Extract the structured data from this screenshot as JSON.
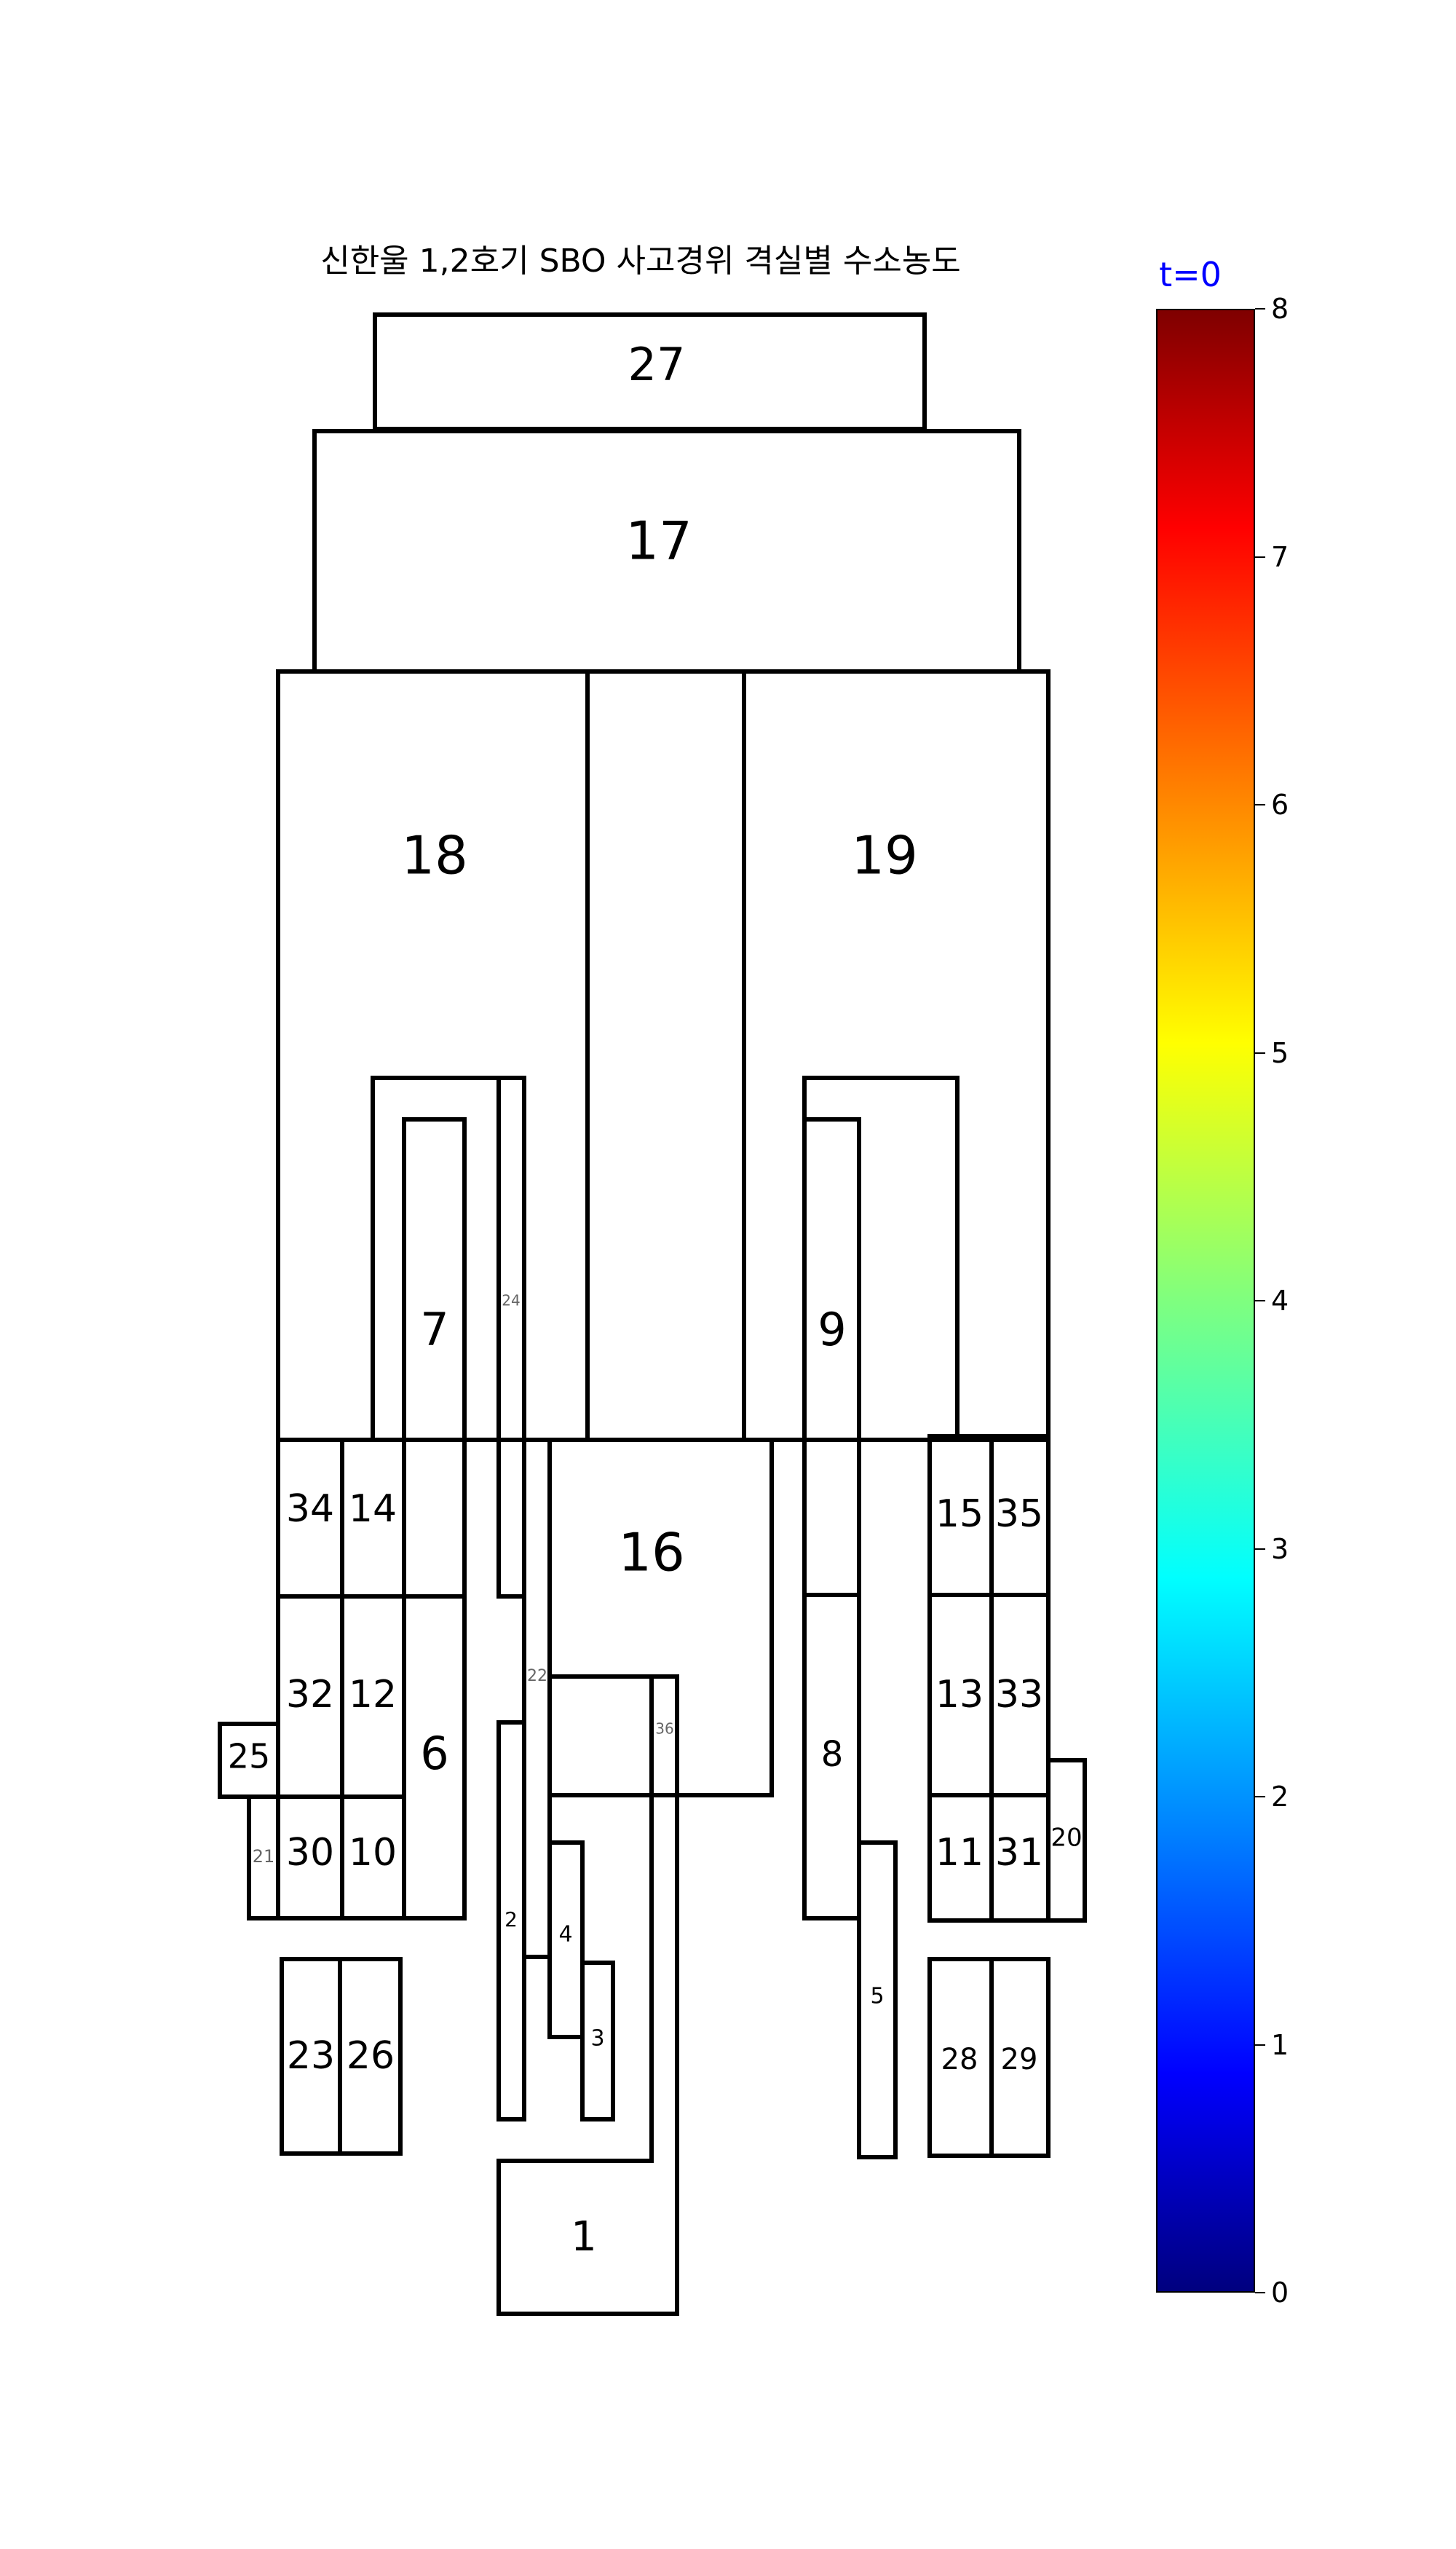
{
  "title": "신한울 1,2호기 SBO 사고경위 격실별 수소농도",
  "time_label": "t=0",
  "colorbar": {
    "min": 0,
    "max": 8,
    "ticks": [
      "0",
      "1",
      "2",
      "3",
      "4",
      "5",
      "6",
      "7",
      "8"
    ],
    "colormap": "jet"
  },
  "rooms": [
    {
      "id": "27",
      "label": "27"
    },
    {
      "id": "17",
      "label": "17"
    },
    {
      "id": "18",
      "label": "18"
    },
    {
      "id": "19",
      "label": "19"
    },
    {
      "id": "7",
      "label": "7"
    },
    {
      "id": "24",
      "label": "24"
    },
    {
      "id": "9",
      "label": "9"
    },
    {
      "id": "34",
      "label": "34"
    },
    {
      "id": "14",
      "label": "14"
    },
    {
      "id": "16",
      "label": "16"
    },
    {
      "id": "15",
      "label": "15"
    },
    {
      "id": "35",
      "label": "35"
    },
    {
      "id": "32",
      "label": "32"
    },
    {
      "id": "12",
      "label": "12"
    },
    {
      "id": "22",
      "label": "22"
    },
    {
      "id": "13",
      "label": "13"
    },
    {
      "id": "33",
      "label": "33"
    },
    {
      "id": "25",
      "label": "25"
    },
    {
      "id": "6",
      "label": "6"
    },
    {
      "id": "36",
      "label": "36"
    },
    {
      "id": "8",
      "label": "8"
    },
    {
      "id": "20",
      "label": "20"
    },
    {
      "id": "21",
      "label": "21"
    },
    {
      "id": "30",
      "label": "30"
    },
    {
      "id": "10",
      "label": "10"
    },
    {
      "id": "11",
      "label": "11"
    },
    {
      "id": "31",
      "label": "31"
    },
    {
      "id": "2",
      "label": "2"
    },
    {
      "id": "4",
      "label": "4"
    },
    {
      "id": "5",
      "label": "5"
    },
    {
      "id": "3",
      "label": "3"
    },
    {
      "id": "23",
      "label": "23"
    },
    {
      "id": "26",
      "label": "26"
    },
    {
      "id": "28",
      "label": "28"
    },
    {
      "id": "29",
      "label": "29"
    },
    {
      "id": "1",
      "label": "1"
    }
  ]
}
